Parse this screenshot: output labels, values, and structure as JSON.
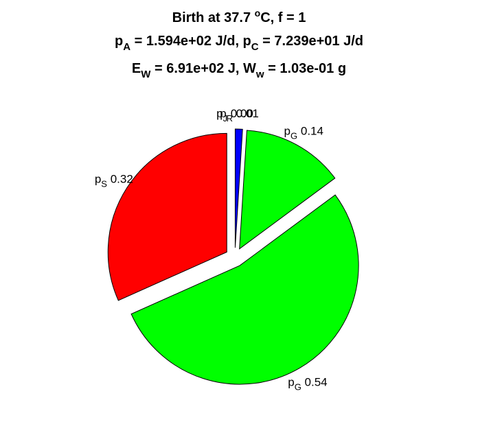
{
  "chart_data": {
    "type": "pie",
    "title": {
      "line1": {
        "a": "Birth at 37.7 ",
        "sup": "o",
        "b": "C, f = 1"
      },
      "line2": {
        "p1": "p",
        "s1": "A",
        "t1": " = 1.594e+02 J/d, p",
        "s2": "C",
        "t2": " = 7.239e+01 J/d"
      },
      "line3": {
        "p1": "E",
        "s1": "W",
        "t1": " = 6.91e+02 J, W",
        "s2": "w",
        "t2": " = 1.03e-01 g"
      }
    },
    "slices": [
      {
        "symbol": "p",
        "sub": "J",
        "value": 0.0,
        "value_label": "0.00",
        "color": "#0000ff",
        "exploded": true
      },
      {
        "symbol": "p",
        "sub": "R",
        "value": 0.01,
        "value_label": "0.01",
        "color": "#0000ff",
        "exploded": true
      },
      {
        "symbol": "p",
        "sub": "G",
        "value": 0.14,
        "value_label": "0.14",
        "color": "#00ff00",
        "exploded": true
      },
      {
        "symbol": "p",
        "sub": "G",
        "value": 0.54,
        "value_label": "0.54",
        "color": "#00ff00",
        "exploded": true
      },
      {
        "symbol": "p",
        "sub": "S",
        "value": 0.32,
        "value_label": "0.32",
        "color": "#ff0000",
        "exploded": true
      }
    ]
  }
}
